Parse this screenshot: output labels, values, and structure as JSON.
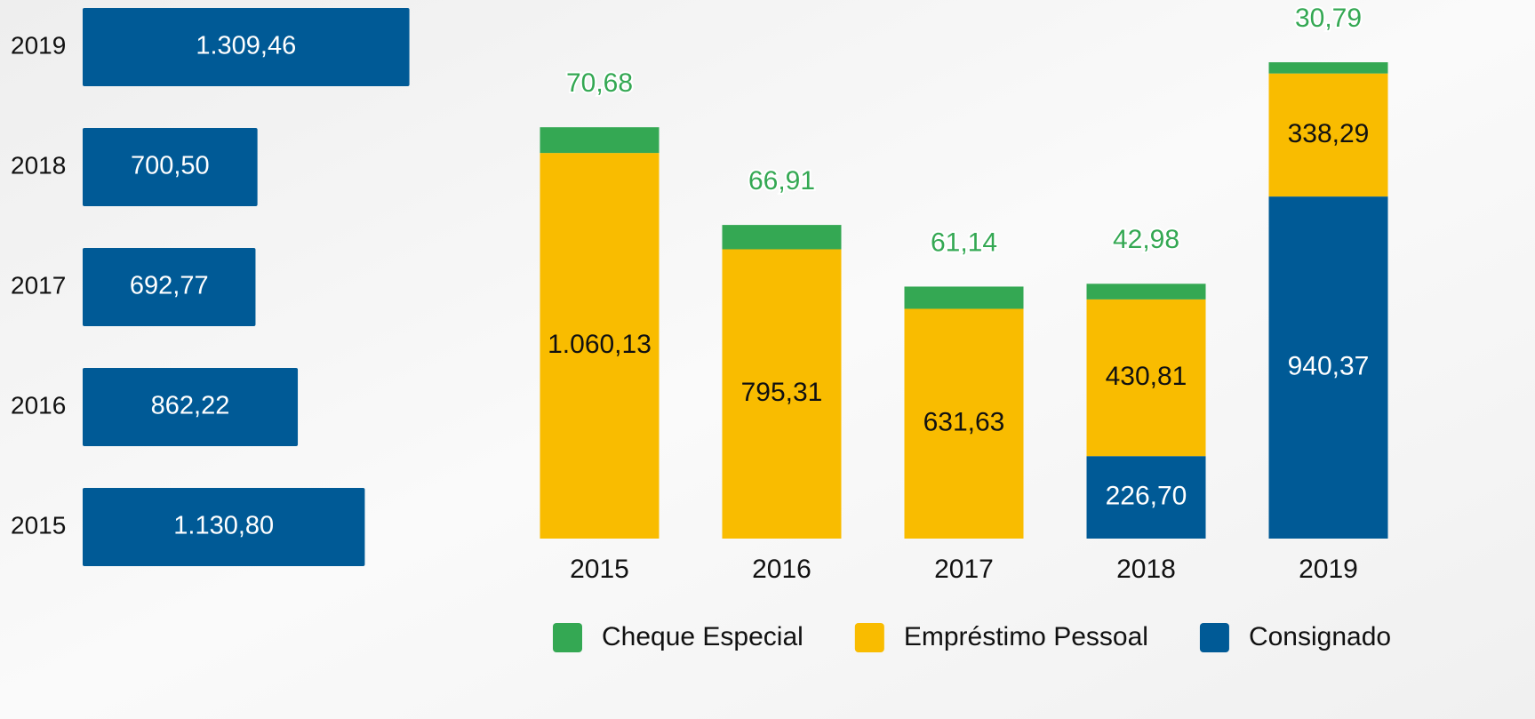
{
  "chart_data": [
    {
      "type": "bar",
      "horizontal": true,
      "categories": [
        "2019",
        "2018",
        "2017",
        "2016",
        "2015"
      ],
      "values": [
        1309.46,
        700.5,
        692.77,
        862.22,
        1130.8
      ],
      "value_labels": [
        "1.309,46",
        "700,50",
        "692,77",
        "862,22",
        "1.130,80"
      ],
      "color": "#005a96",
      "xlim": [
        0,
        1400
      ]
    },
    {
      "type": "bar",
      "stacked": true,
      "categories": [
        "2015",
        "2016",
        "2017",
        "2018",
        "2019"
      ],
      "series": [
        {
          "name": "Cheque Especial",
          "color": "#34a853",
          "values": [
            70.68,
            66.91,
            61.14,
            42.98,
            30.79
          ],
          "value_labels": [
            "70,68",
            "66,91",
            "61,14",
            "42,98",
            "30,79"
          ]
        },
        {
          "name": "Empréstimo Pessoal",
          "color": "#f9bc00",
          "values": [
            1060.13,
            795.31,
            631.63,
            430.81,
            338.29
          ],
          "value_labels": [
            "1.060,13",
            "795,31",
            "631,63",
            "430,81",
            "338,29"
          ]
        },
        {
          "name": "Consignado",
          "color": "#005a96",
          "values": [
            null,
            null,
            null,
            226.7,
            940.37
          ],
          "value_labels": [
            null,
            null,
            null,
            "226,70",
            "940,37"
          ]
        }
      ],
      "ylim": [
        0,
        1400
      ],
      "legend": "bottom"
    }
  ]
}
